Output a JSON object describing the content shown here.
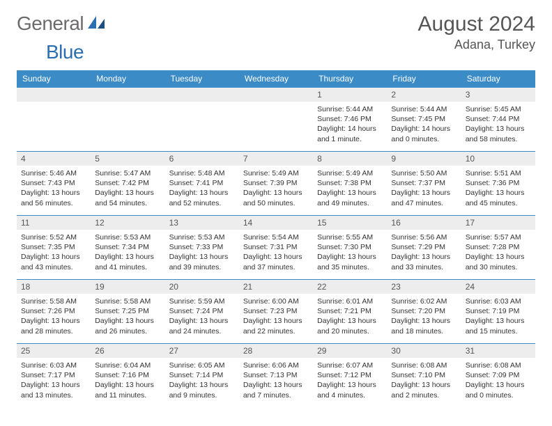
{
  "brand": {
    "name1": "General",
    "name2": "Blue"
  },
  "title": "August 2024",
  "location": "Adana, Turkey",
  "dayHeaders": [
    "Sunday",
    "Monday",
    "Tuesday",
    "Wednesday",
    "Thursday",
    "Friday",
    "Saturday"
  ],
  "colors": {
    "header_bg": "#3b8bc7",
    "header_text": "#ffffff",
    "band_bg": "#ededed",
    "border": "#3b8bc7",
    "brand_gray": "#6b6b6b",
    "brand_blue": "#2b6fb0"
  },
  "weeks": [
    [
      {
        "num": "",
        "lines": []
      },
      {
        "num": "",
        "lines": []
      },
      {
        "num": "",
        "lines": []
      },
      {
        "num": "",
        "lines": []
      },
      {
        "num": "1",
        "lines": [
          "Sunrise: 5:44 AM",
          "Sunset: 7:46 PM",
          "Daylight: 14 hours and 1 minute."
        ]
      },
      {
        "num": "2",
        "lines": [
          "Sunrise: 5:44 AM",
          "Sunset: 7:45 PM",
          "Daylight: 14 hours and 0 minutes."
        ]
      },
      {
        "num": "3",
        "lines": [
          "Sunrise: 5:45 AM",
          "Sunset: 7:44 PM",
          "Daylight: 13 hours and 58 minutes."
        ]
      }
    ],
    [
      {
        "num": "4",
        "lines": [
          "Sunrise: 5:46 AM",
          "Sunset: 7:43 PM",
          "Daylight: 13 hours and 56 minutes."
        ]
      },
      {
        "num": "5",
        "lines": [
          "Sunrise: 5:47 AM",
          "Sunset: 7:42 PM",
          "Daylight: 13 hours and 54 minutes."
        ]
      },
      {
        "num": "6",
        "lines": [
          "Sunrise: 5:48 AM",
          "Sunset: 7:41 PM",
          "Daylight: 13 hours and 52 minutes."
        ]
      },
      {
        "num": "7",
        "lines": [
          "Sunrise: 5:49 AM",
          "Sunset: 7:39 PM",
          "Daylight: 13 hours and 50 minutes."
        ]
      },
      {
        "num": "8",
        "lines": [
          "Sunrise: 5:49 AM",
          "Sunset: 7:38 PM",
          "Daylight: 13 hours and 49 minutes."
        ]
      },
      {
        "num": "9",
        "lines": [
          "Sunrise: 5:50 AM",
          "Sunset: 7:37 PM",
          "Daylight: 13 hours and 47 minutes."
        ]
      },
      {
        "num": "10",
        "lines": [
          "Sunrise: 5:51 AM",
          "Sunset: 7:36 PM",
          "Daylight: 13 hours and 45 minutes."
        ]
      }
    ],
    [
      {
        "num": "11",
        "lines": [
          "Sunrise: 5:52 AM",
          "Sunset: 7:35 PM",
          "Daylight: 13 hours and 43 minutes."
        ]
      },
      {
        "num": "12",
        "lines": [
          "Sunrise: 5:53 AM",
          "Sunset: 7:34 PM",
          "Daylight: 13 hours and 41 minutes."
        ]
      },
      {
        "num": "13",
        "lines": [
          "Sunrise: 5:53 AM",
          "Sunset: 7:33 PM",
          "Daylight: 13 hours and 39 minutes."
        ]
      },
      {
        "num": "14",
        "lines": [
          "Sunrise: 5:54 AM",
          "Sunset: 7:31 PM",
          "Daylight: 13 hours and 37 minutes."
        ]
      },
      {
        "num": "15",
        "lines": [
          "Sunrise: 5:55 AM",
          "Sunset: 7:30 PM",
          "Daylight: 13 hours and 35 minutes."
        ]
      },
      {
        "num": "16",
        "lines": [
          "Sunrise: 5:56 AM",
          "Sunset: 7:29 PM",
          "Daylight: 13 hours and 33 minutes."
        ]
      },
      {
        "num": "17",
        "lines": [
          "Sunrise: 5:57 AM",
          "Sunset: 7:28 PM",
          "Daylight: 13 hours and 30 minutes."
        ]
      }
    ],
    [
      {
        "num": "18",
        "lines": [
          "Sunrise: 5:58 AM",
          "Sunset: 7:26 PM",
          "Daylight: 13 hours and 28 minutes."
        ]
      },
      {
        "num": "19",
        "lines": [
          "Sunrise: 5:58 AM",
          "Sunset: 7:25 PM",
          "Daylight: 13 hours and 26 minutes."
        ]
      },
      {
        "num": "20",
        "lines": [
          "Sunrise: 5:59 AM",
          "Sunset: 7:24 PM",
          "Daylight: 13 hours and 24 minutes."
        ]
      },
      {
        "num": "21",
        "lines": [
          "Sunrise: 6:00 AM",
          "Sunset: 7:23 PM",
          "Daylight: 13 hours and 22 minutes."
        ]
      },
      {
        "num": "22",
        "lines": [
          "Sunrise: 6:01 AM",
          "Sunset: 7:21 PM",
          "Daylight: 13 hours and 20 minutes."
        ]
      },
      {
        "num": "23",
        "lines": [
          "Sunrise: 6:02 AM",
          "Sunset: 7:20 PM",
          "Daylight: 13 hours and 18 minutes."
        ]
      },
      {
        "num": "24",
        "lines": [
          "Sunrise: 6:03 AM",
          "Sunset: 7:19 PM",
          "Daylight: 13 hours and 15 minutes."
        ]
      }
    ],
    [
      {
        "num": "25",
        "lines": [
          "Sunrise: 6:03 AM",
          "Sunset: 7:17 PM",
          "Daylight: 13 hours and 13 minutes."
        ]
      },
      {
        "num": "26",
        "lines": [
          "Sunrise: 6:04 AM",
          "Sunset: 7:16 PM",
          "Daylight: 13 hours and 11 minutes."
        ]
      },
      {
        "num": "27",
        "lines": [
          "Sunrise: 6:05 AM",
          "Sunset: 7:14 PM",
          "Daylight: 13 hours and 9 minutes."
        ]
      },
      {
        "num": "28",
        "lines": [
          "Sunrise: 6:06 AM",
          "Sunset: 7:13 PM",
          "Daylight: 13 hours and 7 minutes."
        ]
      },
      {
        "num": "29",
        "lines": [
          "Sunrise: 6:07 AM",
          "Sunset: 7:12 PM",
          "Daylight: 13 hours and 4 minutes."
        ]
      },
      {
        "num": "30",
        "lines": [
          "Sunrise: 6:08 AM",
          "Sunset: 7:10 PM",
          "Daylight: 13 hours and 2 minutes."
        ]
      },
      {
        "num": "31",
        "lines": [
          "Sunrise: 6:08 AM",
          "Sunset: 7:09 PM",
          "Daylight: 13 hours and 0 minutes."
        ]
      }
    ]
  ]
}
